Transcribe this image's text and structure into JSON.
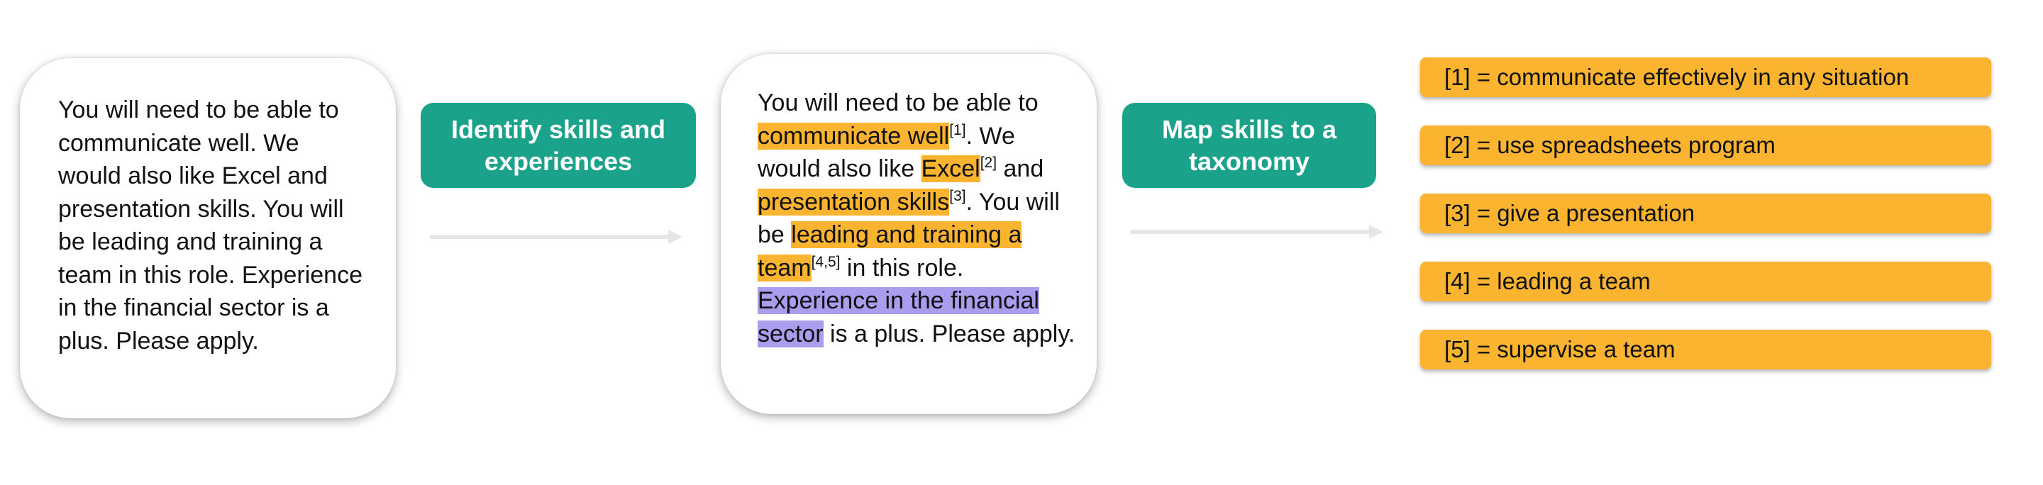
{
  "original_text": "You will need to be able to communicate well. We would also like Excel and presentation skills. You will be leading and training a team in this role. Experience in the financial sector is a plus. Please apply.",
  "annotated": {
    "t1": "You will need to be able to ",
    "s1": "communicate well",
    "r1": "[1]",
    "t2": ". We would also like ",
    "s2": "Excel",
    "r2": "[2]",
    "t3": " and ",
    "s3": "presentation skills",
    "r3": "[3]",
    "t4": ". You will be ",
    "s4": "leading and training a team",
    "r4": "[4,5]",
    "t5": " in this role. ",
    "e1": "Experience in the financial sector",
    "t6": " is a plus. Please apply."
  },
  "steps": {
    "identify": "Identify skills and experiences",
    "map": "Map skills to a taxonomy"
  },
  "mappings": [
    "[1] = communicate effectively in any situation",
    "[2] = use spreadsheets program",
    "[3] = give a presentation",
    "[4] = leading a team",
    "[5] = supervise a team"
  ],
  "colors": {
    "step_fill": "#1aa38a",
    "skill_highlight": "#fbb430",
    "experience_highlight": "#ab9cee",
    "arrow": "#e6e6e6"
  }
}
